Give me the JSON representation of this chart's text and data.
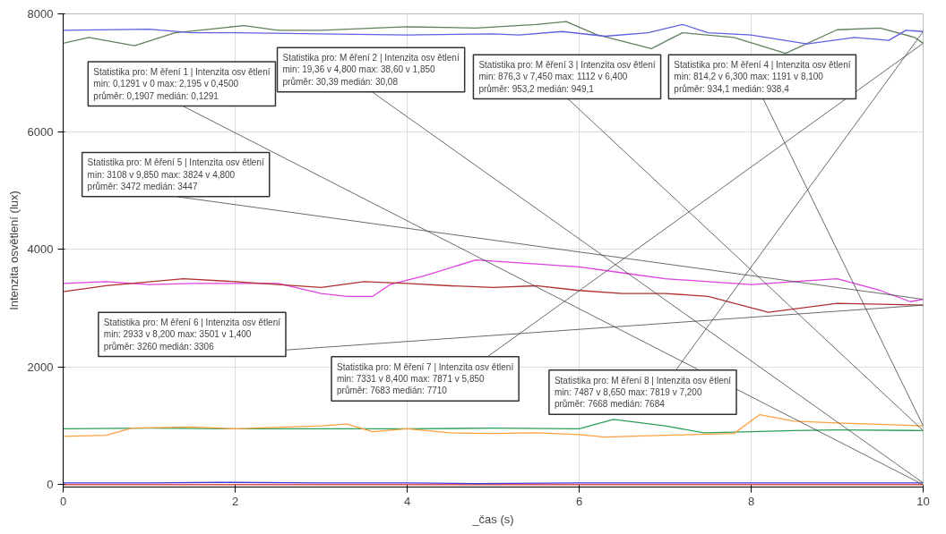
{
  "chart_data": {
    "type": "line",
    "xlabel": "_čas (s)",
    "ylabel": "Intenzita osvětlení (lux)",
    "xlim": [
      0,
      10
    ],
    "ylim": [
      -40,
      8000
    ],
    "xticks": [
      0,
      2,
      4,
      6,
      8,
      10
    ],
    "yticks": [
      0,
      2000,
      4000,
      6000,
      8000
    ],
    "grid": true,
    "marker": "none",
    "line_style": "solid",
    "series": [
      {
        "color": "#e03030",
        "x": [
          0,
          0.45,
          1,
          2,
          3,
          4,
          5,
          6,
          7,
          8,
          9,
          10
        ],
        "values": [
          0,
          0,
          0,
          0,
          0,
          0,
          0,
          0,
          0,
          0,
          0,
          0
        ]
      },
      {
        "color": "#4040e0",
        "x": [
          0,
          1,
          1.85,
          3,
          4,
          4.8,
          6,
          7,
          8,
          9,
          10
        ],
        "values": [
          30,
          30,
          40,
          30,
          30,
          20,
          30,
          30,
          30,
          30,
          30
        ]
      },
      {
        "color": "#2ca05a",
        "x": [
          0,
          1,
          2,
          3,
          4,
          5,
          6,
          6.4,
          7,
          7.45,
          8,
          8.5,
          9,
          10
        ],
        "values": [
          950,
          960,
          950,
          950,
          950,
          960,
          950,
          1110,
          1000,
          880,
          900,
          920,
          930,
          920
        ]
      },
      {
        "color": "#ffa040",
        "x": [
          0,
          0.5,
          0.8,
          1.5,
          2,
          3,
          3.3,
          3.6,
          4,
          4.5,
          5,
          5.5,
          6,
          6.3,
          7,
          7.8,
          8.1,
          8.5,
          9,
          10
        ],
        "values": [
          820,
          840,
          960,
          980,
          950,
          1000,
          1030,
          900,
          950,
          880,
          870,
          880,
          850,
          810,
          840,
          870,
          1190,
          1080,
          1050,
          1000
        ]
      },
      {
        "color": "#e040e0",
        "x": [
          0,
          0.5,
          1,
          1.5,
          2,
          2.5,
          3,
          3.3,
          3.6,
          3.8,
          4.2,
          4.8,
          5.5,
          6,
          6.5,
          7,
          7.5,
          8,
          8.5,
          9,
          9.5,
          9.85,
          10
        ],
        "values": [
          3420,
          3450,
          3400,
          3420,
          3420,
          3420,
          3250,
          3200,
          3200,
          3400,
          3550,
          3820,
          3750,
          3700,
          3600,
          3500,
          3450,
          3400,
          3450,
          3500,
          3300,
          3110,
          3150
        ]
      },
      {
        "color": "#b03030",
        "x": [
          0,
          0.5,
          1.4,
          2,
          2.5,
          3,
          3.5,
          4,
          4.5,
          5,
          5.5,
          6,
          6.5,
          7,
          7.5,
          8.2,
          9,
          10
        ],
        "values": [
          3280,
          3380,
          3500,
          3450,
          3400,
          3350,
          3450,
          3420,
          3380,
          3350,
          3380,
          3300,
          3250,
          3250,
          3200,
          2930,
          3080,
          3050
        ]
      },
      {
        "color": "#608060",
        "x": [
          0,
          0.3,
          0.83,
          1.3,
          2.1,
          2.5,
          3,
          3.5,
          4,
          4.8,
          5.5,
          5.85,
          6.2,
          6.84,
          7.2,
          7.8,
          8.4,
          9,
          9.5,
          9.9,
          10
        ],
        "values": [
          7500,
          7600,
          7460,
          7680,
          7800,
          7720,
          7720,
          7750,
          7780,
          7760,
          7820,
          7870,
          7650,
          7410,
          7680,
          7600,
          7330,
          7730,
          7760,
          7600,
          7500
        ]
      },
      {
        "color": "#6060e0",
        "x": [
          0,
          1,
          1.5,
          2,
          3,
          4,
          5,
          5.3,
          5.8,
          6.3,
          6.8,
          7.2,
          7.5,
          8,
          8.65,
          9.2,
          9.6,
          9.8,
          10
        ],
        "values": [
          7720,
          7740,
          7680,
          7680,
          7660,
          7640,
          7660,
          7640,
          7700,
          7620,
          7680,
          7820,
          7680,
          7640,
          7490,
          7600,
          7550,
          7720,
          7700
        ]
      }
    ],
    "annotations": [
      "Statistika pro: M ěření 1 | Intenzita osv ětlení\nmin: 0,1291 v 0 max: 2,195 v 0,4500\nprůměr: 0,1907 medián: 0,1291",
      "Statistika pro: M ěření 2 | Intenzita osv ětlení\nmin: 19,36 v 4,800 max: 38,60 v 1,850\nprůměr: 30,39 medián: 30,08",
      "Statistika pro: M ěření 3 | Intenzita osv ětlení\nmin: 876,3 v 7,450 max: 1112 v 6,400\nprůměr: 953,2 medián: 949,1",
      "Statistika pro: M ěření 4 | Intenzita osv ětlení\nmin: 814,2 v 6,300 max: 1191 v 8,100\nprůměr: 934,1 medián: 938,4",
      "Statistika pro: M ěření 5 | Intenzita osv ětlení\nmin: 3108 v 9,850 max: 3824 v 4,800\nprůměr: 3472 medián: 3447",
      "Statistika pro: M ěření 6 | Intenzita osv ětlení\nmin: 2933 v 8,200 max: 3501 v 1,400\nprůměr: 3260 medián: 3306",
      "Statistika pro: M ěření 7 | Intenzita osv ětlení\nmin: 7331 v 8,400 max: 7871 v 5,850\nprůměr: 7683 medián: 7710",
      "Statistika pro: M ěření 8 | Intenzita osv ětlení\nmin: 7487 v 8,650 max: 7819 v 7,200\nprůměr: 7668 medián: 7684"
    ]
  }
}
